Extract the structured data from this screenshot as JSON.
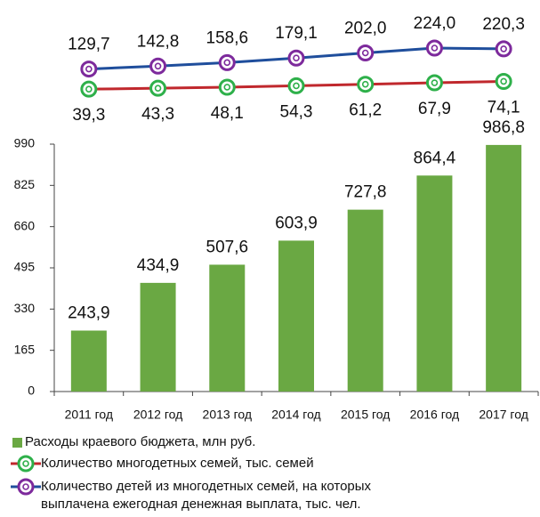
{
  "chart_data": {
    "type": "bar",
    "categories": [
      "2011 год",
      "2012 год",
      "2013 год",
      "2014 год",
      "2015 год",
      "2016 год",
      "2017 год"
    ],
    "ylim": [
      0,
      990
    ],
    "yticks": [
      0,
      165,
      330,
      495,
      660,
      825,
      990
    ],
    "grid": false,
    "series": [
      {
        "name": "Расходы краевого бюджета, млн руб.",
        "type": "bar",
        "color": "#6aa843",
        "values": [
          243.9,
          434.9,
          507.6,
          603.9,
          727.8,
          864.4,
          986.8
        ],
        "value_labels": [
          "243,9",
          "434,9",
          "507,6",
          "603,9",
          "727,8",
          "864,4",
          "986,8"
        ]
      },
      {
        "name": "Количество многодетных семей, тыс. семей",
        "type": "line",
        "color": "#c0282d",
        "marker_color": "#2eb04a",
        "values": [
          39.3,
          43.3,
          48.1,
          54.3,
          61.2,
          67.9,
          74.1
        ],
        "value_labels": [
          "39,3",
          "43,3",
          "48,1",
          "54,3",
          "61,2",
          "67,9",
          "74,1"
        ]
      },
      {
        "name": "Количество детей из многодетных семей, на которых выплачена ежегодная денежная выплата, тыс. чел.",
        "type": "line",
        "color": "#1f4e9c",
        "marker_color": "#7d2a9c",
        "values": [
          129.7,
          142.8,
          158.6,
          179.1,
          202.0,
          224.0,
          220.3
        ],
        "value_labels": [
          "129,7",
          "142,8",
          "158,6",
          "179,1",
          "202,0",
          "224,0",
          "220,3"
        ]
      }
    ]
  }
}
